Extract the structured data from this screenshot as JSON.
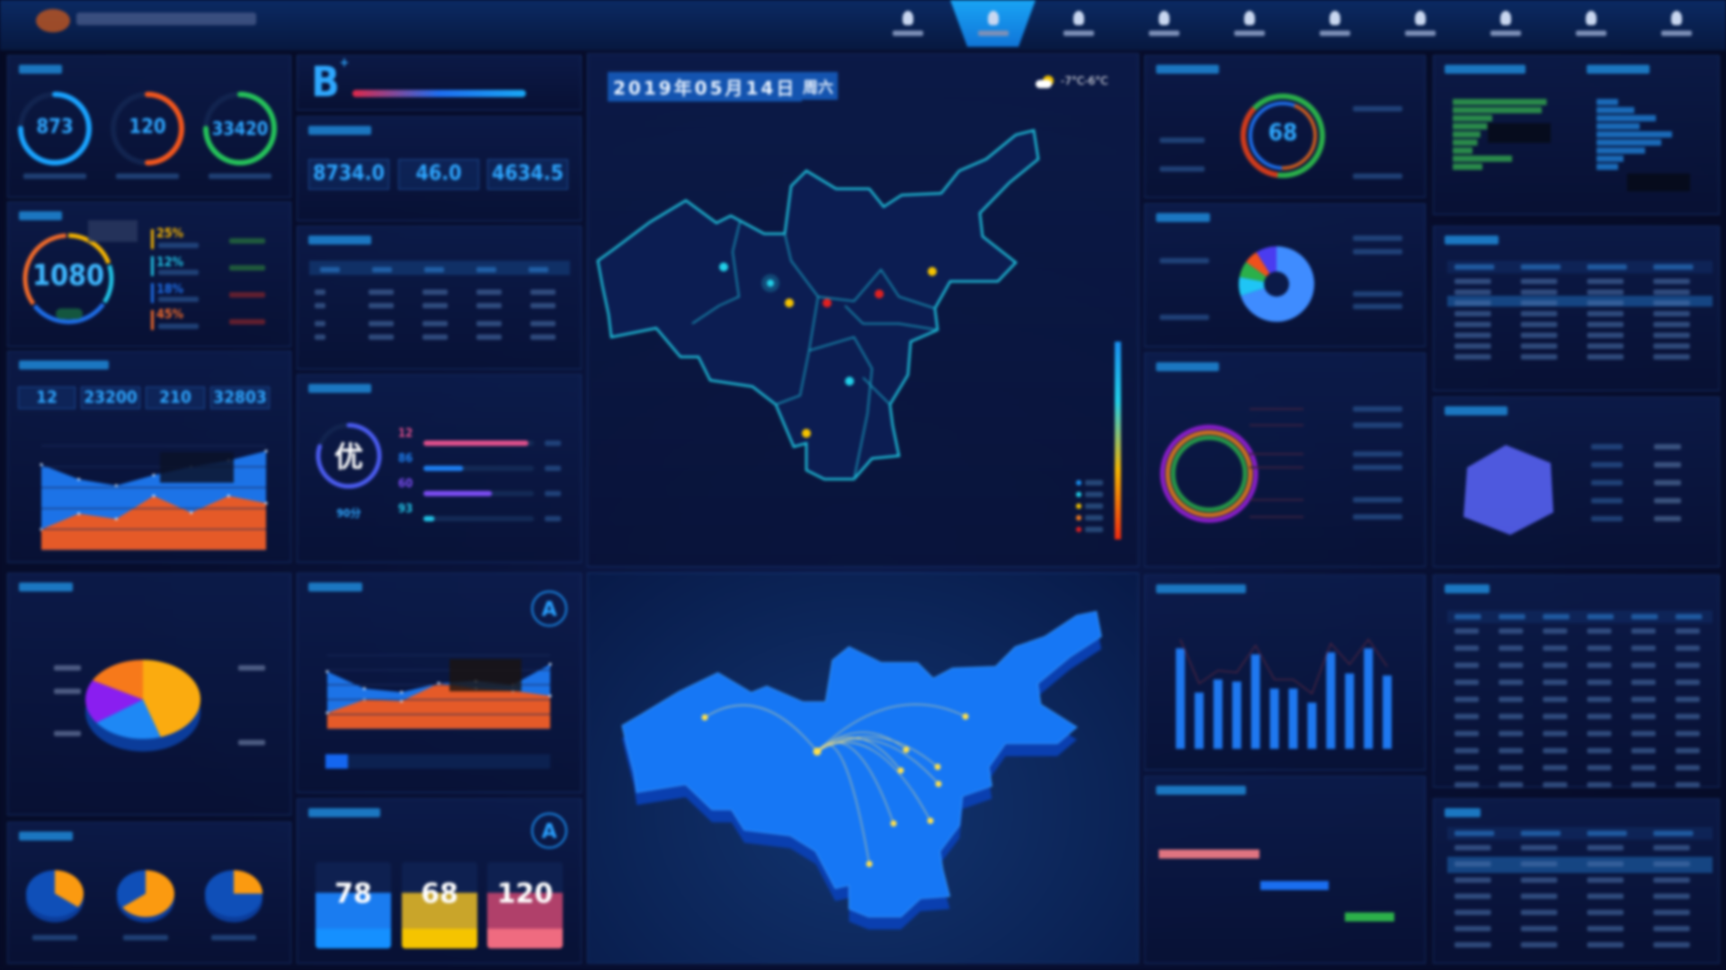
{
  "header": {
    "nav_items": [
      {
        "icon": "user-icon"
      },
      {
        "icon": "pin-icon",
        "active": true
      },
      {
        "icon": "monitor-icon"
      },
      {
        "icon": "document-icon"
      },
      {
        "icon": "person-icon"
      },
      {
        "icon": "drop-icon"
      },
      {
        "icon": "building-icon"
      },
      {
        "icon": "chart-icon"
      },
      {
        "icon": "device-icon"
      },
      {
        "icon": "settings-icon"
      }
    ]
  },
  "gauges": [
    {
      "value": "873",
      "fraction": 0.75,
      "color": "#1aa3ff"
    },
    {
      "value": "120",
      "fraction": 0.5,
      "color": "#f2561d"
    },
    {
      "value": "33420",
      "fraction": 0.75,
      "color": "#25c25a"
    }
  ],
  "cost": {
    "value": "1080",
    "items": [
      {
        "pct": "25%",
        "color": "#f5b400"
      },
      {
        "pct": "12%",
        "color": "#22c3e6"
      },
      {
        "pct": "18%",
        "color": "#1e6ee8"
      },
      {
        "pct": "45%",
        "color": "#f06a2a"
      }
    ]
  },
  "stats": [
    "12",
    "23200",
    "210",
    "32803"
  ],
  "grade": {
    "letter": "B",
    "sup": "+"
  },
  "kpis": [
    "8734.0",
    "46.0",
    "4634.5"
  ],
  "evaluation": {
    "grade": "优",
    "score": "90分",
    "bars": [
      {
        "value": "12",
        "fill": 0.95,
        "color": "#e0508c"
      },
      {
        "value": "86",
        "fill": 0.36,
        "color": "#1e7ef0"
      },
      {
        "value": "60",
        "fill": 0.62,
        "color": "#7a4cf0"
      },
      {
        "value": "93",
        "fill": 0.1,
        "color": "#22c3e6"
      }
    ]
  },
  "map": {
    "date": "2019年05月14日",
    "weekday": "周六",
    "weather": "-7°C-6°C",
    "weather_icon": "partly-cloudy-icon"
  },
  "cards": [
    {
      "value": "78",
      "color": "#1a7cf0",
      "foot": "#1590ff"
    },
    {
      "value": "68",
      "color": "#c9a52a",
      "foot": "#f5c400"
    },
    {
      "value": "120",
      "color": "#b0406a",
      "foot": "#ef6b80"
    }
  ],
  "ring_value": "68",
  "chart_data": [
    {
      "type": "area",
      "series": [
        {
          "values": [
            82,
            68,
            62,
            72,
            80,
            86,
            95
          ],
          "color": "#1e78f0"
        },
        {
          "values": [
            20,
            35,
            30,
            52,
            36,
            52,
            45
          ],
          "color": "#f0581e"
        }
      ],
      "ylim": [
        0,
        100
      ]
    },
    {
      "type": "area",
      "series": [
        {
          "values": [
            78,
            55,
            50,
            62,
            65,
            60,
            88
          ],
          "color": "#1e78f0"
        },
        {
          "values": [
            22,
            40,
            38,
            62,
            55,
            52,
            45
          ],
          "color": "#f0581e"
        }
      ],
      "ylim": [
        0,
        100
      ]
    },
    {
      "type": "bar",
      "values": [
        100,
        56,
        69,
        67,
        94,
        60,
        60,
        46,
        96,
        75,
        100,
        73
      ],
      "ylim": [
        0,
        110
      ],
      "color": "#1e78f0"
    },
    {
      "type": "pie",
      "values": [
        45,
        20,
        18,
        17
      ],
      "colors": [
        "#fbab0f",
        "#1e88f5",
        "#8a1ef0",
        "#f7791a"
      ]
    }
  ]
}
